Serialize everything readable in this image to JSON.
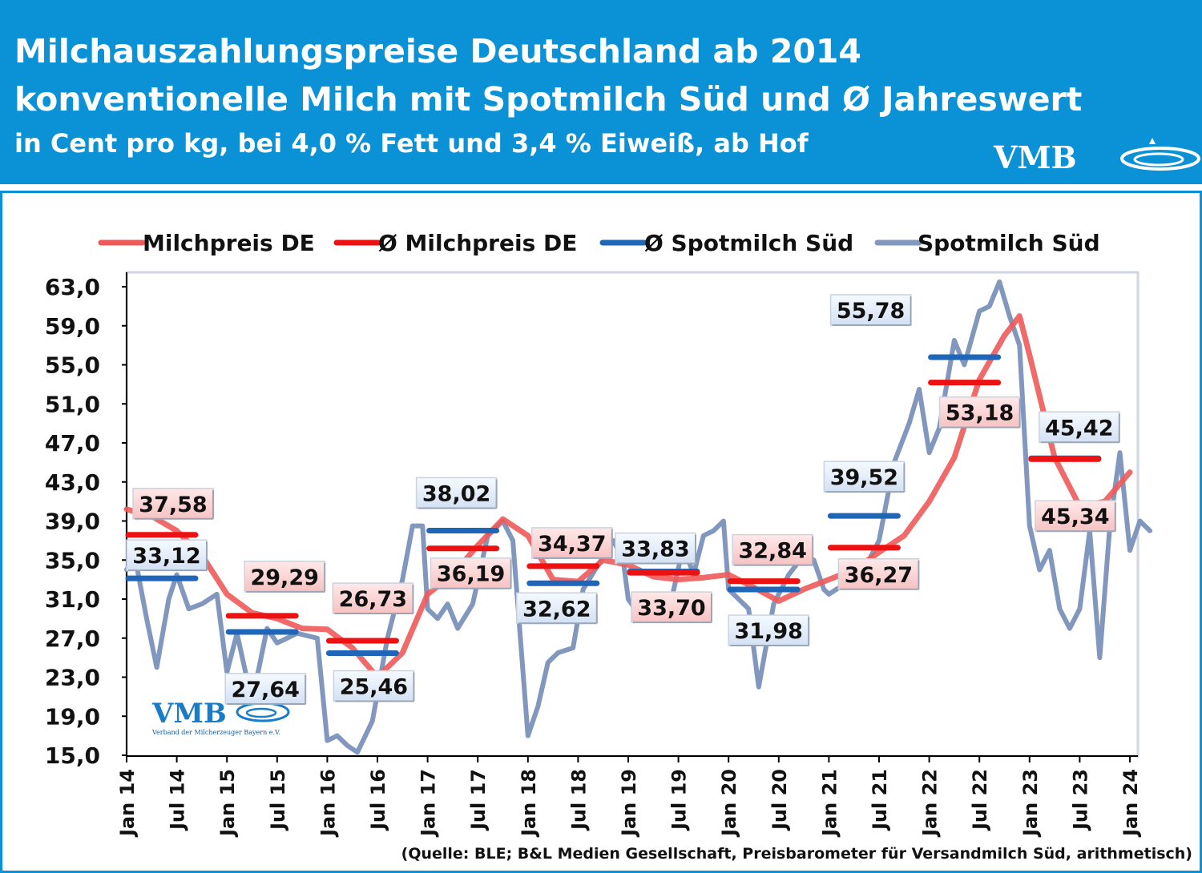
{
  "header": {
    "title_line1": "Milchauszahlungspreise Deutschland ab 2014",
    "title_line2": "konventionelle Milch mit Spotmilch Süd und Ø Jahreswert",
    "subtitle": "in Cent pro kg, bei 4,0 % Fett und 3,4 % Eiweiß, ab Hof",
    "logo_text": "VMB"
  },
  "watermark": {
    "logo_text": "VMB",
    "caption": "Verband der Milcherzeuger Bayern e.V."
  },
  "source_note": "(Quelle: BLE; B&L Medien Gesellschaft, Preisbarometer für Versandmilch Süd, arithmetisch)",
  "colors": {
    "header_bg": "#0a91d6",
    "milchpreis_line": "#ee5a5a",
    "avg_milchpreis": "#ee1111",
    "avg_spot": "#1f66b8",
    "spot_line": "#8197bd"
  },
  "chart_data": {
    "type": "line",
    "ylim": [
      15,
      63
    ],
    "yticks": [
      "63,0",
      "59,0",
      "55,0",
      "51,0",
      "47,0",
      "43,0",
      "39,0",
      "35,0",
      "31,0",
      "27,0",
      "23,0",
      "19,0",
      "15,0"
    ],
    "xtick_labels": [
      "Jan 14",
      "Jul 14",
      "Jan 15",
      "Jul 15",
      "Jan 16",
      "Jul 16",
      "Jan 17",
      "Jul 17",
      "Jan 18",
      "Jul 18",
      "Jan 19",
      "Jul 19",
      "Jan 20",
      "Jul 20",
      "Jan 21",
      "Jul 21",
      "Jan 22",
      "Jul 22",
      "Jan 23",
      "Jul 23",
      "Jan 24"
    ],
    "legend": [
      "Milchpreis DE",
      "Ø Milchpreis DE",
      "Ø Spotmilch Süd",
      "Spotmilch Süd"
    ],
    "legend_position": "top",
    "series": [
      {
        "name": "Milchpreis DE",
        "values": [
          [
            2014.0,
            40.2
          ],
          [
            2014.25,
            39.5
          ],
          [
            2014.5,
            38.0
          ],
          [
            2014.75,
            35.5
          ],
          [
            2015.0,
            31.5
          ],
          [
            2015.25,
            29.6
          ],
          [
            2015.5,
            29.0
          ],
          [
            2015.75,
            28.0
          ],
          [
            2016.0,
            27.9
          ],
          [
            2016.25,
            26.0
          ],
          [
            2016.5,
            23.0
          ],
          [
            2016.75,
            25.5
          ],
          [
            2017.0,
            31.5
          ],
          [
            2017.25,
            33.5
          ],
          [
            2017.5,
            36.5
          ],
          [
            2017.75,
            39.2
          ],
          [
            2018.0,
            37.5
          ],
          [
            2018.25,
            33.0
          ],
          [
            2018.5,
            32.8
          ],
          [
            2018.75,
            35.0
          ],
          [
            2019.0,
            34.5
          ],
          [
            2019.25,
            33.3
          ],
          [
            2019.5,
            33.0
          ],
          [
            2019.75,
            33.2
          ],
          [
            2020.0,
            33.5
          ],
          [
            2020.25,
            32.2
          ],
          [
            2020.5,
            30.8
          ],
          [
            2020.75,
            32.0
          ],
          [
            2021.0,
            33.0
          ],
          [
            2021.25,
            34.0
          ],
          [
            2021.5,
            35.8
          ],
          [
            2021.75,
            37.5
          ],
          [
            2022.0,
            41.0
          ],
          [
            2022.25,
            45.5
          ],
          [
            2022.5,
            53.5
          ],
          [
            2022.75,
            58.0
          ],
          [
            2022.9,
            60.0
          ],
          [
            2023.0,
            56.0
          ],
          [
            2023.25,
            45.5
          ],
          [
            2023.5,
            40.5
          ],
          [
            2023.75,
            41.0
          ],
          [
            2024.0,
            44.0
          ]
        ]
      },
      {
        "name": "Spotmilch Süd",
        "values": [
          [
            2014.0,
            34.0
          ],
          [
            2014.08,
            35.5
          ],
          [
            2014.2,
            29.0
          ],
          [
            2014.3,
            24.0
          ],
          [
            2014.42,
            31.0
          ],
          [
            2014.5,
            33.5
          ],
          [
            2014.62,
            30.0
          ],
          [
            2014.75,
            30.5
          ],
          [
            2014.9,
            31.5
          ],
          [
            2015.0,
            23.5
          ],
          [
            2015.1,
            27.5
          ],
          [
            2015.25,
            20.5
          ],
          [
            2015.4,
            28.0
          ],
          [
            2015.5,
            26.5
          ],
          [
            2015.7,
            27.5
          ],
          [
            2015.9,
            27.0
          ],
          [
            2016.0,
            16.5
          ],
          [
            2016.1,
            17.0
          ],
          [
            2016.2,
            16.0
          ],
          [
            2016.3,
            15.3
          ],
          [
            2016.45,
            18.5
          ],
          [
            2016.6,
            27.0
          ],
          [
            2016.75,
            33.0
          ],
          [
            2016.85,
            38.5
          ],
          [
            2016.95,
            38.5
          ],
          [
            2017.0,
            30.0
          ],
          [
            2017.1,
            29.0
          ],
          [
            2017.2,
            30.5
          ],
          [
            2017.3,
            28.0
          ],
          [
            2017.45,
            30.5
          ],
          [
            2017.6,
            37.5
          ],
          [
            2017.75,
            39.0
          ],
          [
            2017.85,
            37.0
          ],
          [
            2018.0,
            17.0
          ],
          [
            2018.1,
            20.0
          ],
          [
            2018.2,
            24.5
          ],
          [
            2018.3,
            25.5
          ],
          [
            2018.45,
            26.0
          ],
          [
            2018.55,
            32.0
          ],
          [
            2018.7,
            34.5
          ],
          [
            2018.85,
            37.0
          ],
          [
            2018.95,
            35.0
          ],
          [
            2019.0,
            31.0
          ],
          [
            2019.1,
            29.5
          ],
          [
            2019.25,
            30.0
          ],
          [
            2019.4,
            29.5
          ],
          [
            2019.55,
            36.5
          ],
          [
            2019.65,
            33.5
          ],
          [
            2019.75,
            37.5
          ],
          [
            2019.85,
            38.0
          ],
          [
            2019.95,
            39.0
          ],
          [
            2020.0,
            32.0
          ],
          [
            2020.2,
            30.0
          ],
          [
            2020.3,
            22.0
          ],
          [
            2020.45,
            30.5
          ],
          [
            2020.6,
            33.5
          ],
          [
            2020.75,
            35.5
          ],
          [
            2020.85,
            35.0
          ],
          [
            2020.95,
            32.0
          ],
          [
            2021.0,
            31.5
          ],
          [
            2021.15,
            32.5
          ],
          [
            2021.3,
            33.0
          ],
          [
            2021.5,
            37.0
          ],
          [
            2021.65,
            45.0
          ],
          [
            2021.8,
            49.0
          ],
          [
            2021.9,
            52.5
          ],
          [
            2022.0,
            46.0
          ],
          [
            2022.1,
            48.5
          ],
          [
            2022.25,
            57.5
          ],
          [
            2022.35,
            55.0
          ],
          [
            2022.5,
            60.5
          ],
          [
            2022.6,
            61.0
          ],
          [
            2022.7,
            63.5
          ],
          [
            2022.8,
            60.0
          ],
          [
            2022.9,
            57.0
          ],
          [
            2023.0,
            38.5
          ],
          [
            2023.1,
            34.0
          ],
          [
            2023.2,
            36.0
          ],
          [
            2023.3,
            30.0
          ],
          [
            2023.4,
            28.0
          ],
          [
            2023.5,
            30.0
          ],
          [
            2023.6,
            38.0
          ],
          [
            2023.7,
            25.0
          ],
          [
            2023.8,
            38.5
          ],
          [
            2023.9,
            46.0
          ],
          [
            2024.0,
            36.0
          ],
          [
            2024.1,
            39.0
          ],
          [
            2024.2,
            38.0
          ]
        ]
      }
    ],
    "yearly_averages": {
      "milchpreis": [
        {
          "year": 2014,
          "value": 37.58
        },
        {
          "year": 2015,
          "value": 29.29
        },
        {
          "year": 2016,
          "value": 26.73
        },
        {
          "year": 2017,
          "value": 36.19
        },
        {
          "year": 2018,
          "value": 34.37
        },
        {
          "year": 2019,
          "value": 33.7
        },
        {
          "year": 2020,
          "value": 32.84
        },
        {
          "year": 2021,
          "value": 36.27
        },
        {
          "year": 2022,
          "value": 53.18
        },
        {
          "year": 2023,
          "value": 45.34
        }
      ],
      "spotmilch": [
        {
          "year": 2014,
          "value": 33.12
        },
        {
          "year": 2015,
          "value": 27.64
        },
        {
          "year": 2016,
          "value": 25.46
        },
        {
          "year": 2017,
          "value": 38.02
        },
        {
          "year": 2018,
          "value": 32.62
        },
        {
          "year": 2019,
          "value": 33.83
        },
        {
          "year": 2020,
          "value": 31.98
        },
        {
          "year": 2021,
          "value": 39.52
        },
        {
          "year": 2022,
          "value": 55.78
        },
        {
          "year": 2023,
          "value": 45.42
        }
      ]
    },
    "value_labels": {
      "milchpreis": [
        "37,58",
        "29,29",
        "26,73",
        "36,19",
        "34,37",
        "33,70",
        "32,84",
        "36,27",
        "53,18",
        "45,34"
      ],
      "spotmilch": [
        "33,12",
        "27,64",
        "25,46",
        "38,02",
        "32,62",
        "33,83",
        "31,98",
        "39,52",
        "55,78",
        "45,42"
      ]
    }
  }
}
